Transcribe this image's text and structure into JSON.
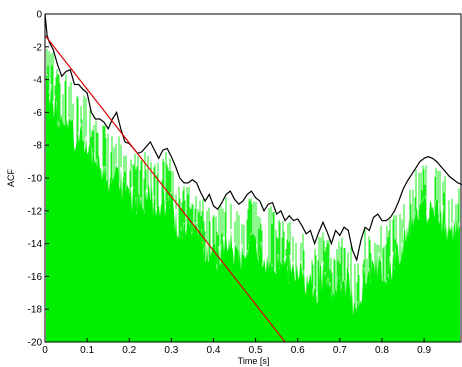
{
  "chart_data": {
    "type": "line",
    "title": "",
    "xlabel": "Time [s]",
    "ylabel": "ACF",
    "xlim": [
      0,
      0.99
    ],
    "ylim": [
      -20,
      0
    ],
    "xticks": [
      0,
      0.1,
      0.2,
      0.3,
      0.4,
      0.5,
      0.6,
      0.7,
      0.8,
      0.9
    ],
    "xtick_labels": [
      "0",
      "0.1",
      "0.2",
      "0.3",
      "0.4",
      "0.5",
      "0.6",
      "0.7",
      "0.8",
      "0.9"
    ],
    "yticks": [
      0,
      -2,
      -4,
      -6,
      -8,
      -10,
      -12,
      -14,
      -16,
      -18,
      -20
    ],
    "ytick_labels": [
      "0",
      "-2",
      "-4",
      "-6",
      "-8",
      "-10",
      "-12",
      "-14",
      "-16",
      "-18",
      "-20"
    ],
    "grid": false,
    "colors": {
      "fill": "#00ee00",
      "envelope": "#000000",
      "fit": "#dd0000"
    },
    "series": [
      {
        "role": "envelope",
        "x": [
          0,
          0.005,
          0.01,
          0.02,
          0.03,
          0.04,
          0.05,
          0.06,
          0.07,
          0.08,
          0.09,
          0.1,
          0.11,
          0.12,
          0.13,
          0.14,
          0.15,
          0.16,
          0.17,
          0.18,
          0.19,
          0.2,
          0.21,
          0.22,
          0.23,
          0.24,
          0.25,
          0.26,
          0.27,
          0.28,
          0.29,
          0.3,
          0.31,
          0.32,
          0.33,
          0.34,
          0.35,
          0.36,
          0.37,
          0.38,
          0.39,
          0.4,
          0.41,
          0.42,
          0.43,
          0.44,
          0.45,
          0.46,
          0.47,
          0.48,
          0.49,
          0.5,
          0.51,
          0.52,
          0.53,
          0.54,
          0.55,
          0.56,
          0.57,
          0.58,
          0.59,
          0.6,
          0.61,
          0.62,
          0.63,
          0.64,
          0.65,
          0.66,
          0.67,
          0.68,
          0.69,
          0.7,
          0.71,
          0.72,
          0.73,
          0.74,
          0.75,
          0.76,
          0.77,
          0.78,
          0.79,
          0.8,
          0.81,
          0.82,
          0.83,
          0.84,
          0.85,
          0.86,
          0.87,
          0.88,
          0.89,
          0.9,
          0.91,
          0.92,
          0.93,
          0.94,
          0.95,
          0.96,
          0.97,
          0.98,
          0.99
        ],
        "values": [
          0,
          -1.3,
          -1.7,
          -2.2,
          -3.1,
          -3.8,
          -3.5,
          -3.4,
          -4.3,
          -4.3,
          -4.6,
          -4.8,
          -6.0,
          -6.4,
          -6.4,
          -6.6,
          -7.0,
          -6.4,
          -6.0,
          -7.0,
          -7.8,
          -7.9,
          -8.2,
          -8.5,
          -8.4,
          -8.1,
          -7.8,
          -8.3,
          -8.8,
          -8.3,
          -8.2,
          -8.7,
          -9.3,
          -10.0,
          -10.3,
          -10.3,
          -10.1,
          -10.3,
          -10.9,
          -11.4,
          -11.0,
          -11.7,
          -11.9,
          -11.5,
          -11.0,
          -10.8,
          -11.3,
          -11.6,
          -11.4,
          -11.0,
          -10.8,
          -11.2,
          -11.4,
          -12.0,
          -11.6,
          -11.5,
          -12.2,
          -12.0,
          -12.6,
          -12.3,
          -12.6,
          -12.5,
          -12.9,
          -13.4,
          -13.2,
          -14.0,
          -13.3,
          -12.7,
          -13.3,
          -14.0,
          -13.2,
          -13.5,
          -13.0,
          -13.2,
          -14.4,
          -15.0,
          -13.8,
          -13.0,
          -13.2,
          -12.4,
          -12.2,
          -12.6,
          -12.6,
          -12.4,
          -12.0,
          -11.4,
          -10.7,
          -10.2,
          -9.8,
          -9.4,
          -9.0,
          -8.8,
          -8.7,
          -8.8,
          -9.0,
          -9.3,
          -9.6,
          -9.9,
          -10.1,
          -10.3,
          -10.4
        ]
      },
      {
        "role": "fit",
        "x": [
          0,
          0.57
        ],
        "values": [
          -1.3,
          -20
        ]
      }
    ]
  }
}
